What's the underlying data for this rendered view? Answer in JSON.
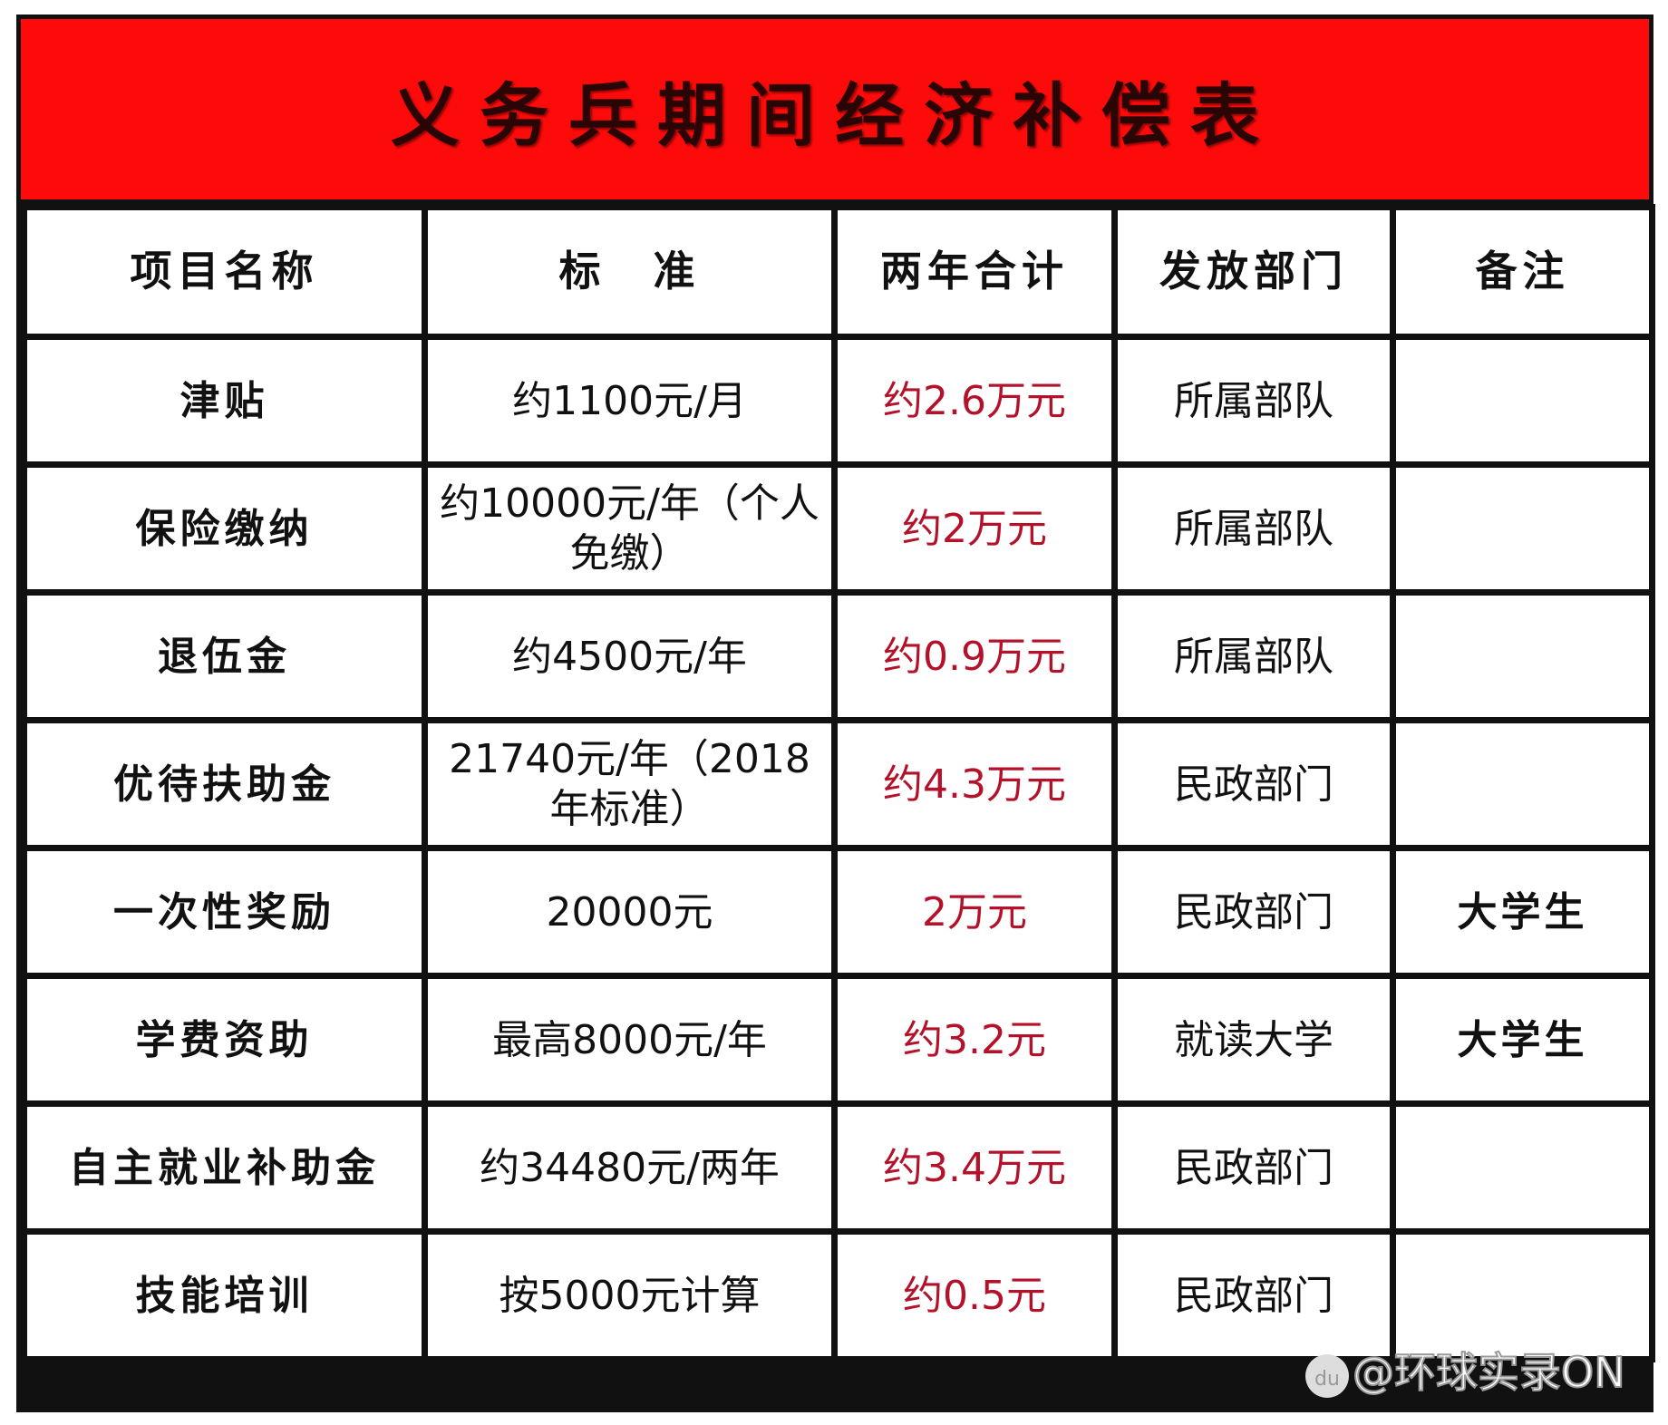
{
  "title": "义务兵期间经济补偿表",
  "headers": [
    "项目名称",
    "标　准",
    "两年合计",
    "发放部门",
    "备注"
  ],
  "rows": [
    {
      "name": "津贴",
      "standard": "约1100元/月",
      "total": "约2.6万元",
      "dept": "所属部队",
      "note": ""
    },
    {
      "name": "保险缴纳",
      "standard": "约10000元/年（个人免缴）",
      "total": "约2万元",
      "dept": "所属部队",
      "note": ""
    },
    {
      "name": "退伍金",
      "standard": "约4500元/年",
      "total": "约0.9万元",
      "dept": "所属部队",
      "note": ""
    },
    {
      "name": "优待扶助金",
      "standard": "21740元/年（2018年标准）",
      "total": "约4.3万元",
      "dept": "民政部门",
      "note": ""
    },
    {
      "name": "一次性奖励",
      "standard": "20000元",
      "total": "2万元",
      "dept": "民政部门",
      "note": "大学生"
    },
    {
      "name": "学费资助",
      "standard": "最高8000元/年",
      "total": "约3.2元",
      "dept": "就读大学",
      "note": "大学生"
    },
    {
      "name": "自主就业补助金",
      "standard": "约34480元/两年",
      "total": "约3.4万元",
      "dept": "民政部门",
      "note": ""
    },
    {
      "name": "技能培训",
      "standard": "按5000元计算",
      "total": "约0.5元",
      "dept": "民政部门",
      "note": ""
    }
  ],
  "watermark": {
    "logo": "du",
    "text": "@环球实录ON"
  },
  "colors": {
    "title_bg": "#fd0a0a",
    "total_text": "#b3122a",
    "border": "#111111"
  }
}
